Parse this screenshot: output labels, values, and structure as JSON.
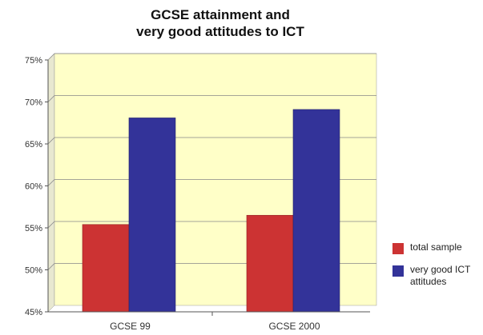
{
  "chart_data": {
    "type": "bar",
    "title": [
      "GCSE attainment and",
      "very good attitudes to ICT"
    ],
    "xlabel": "",
    "ylabel": "",
    "categories": [
      "GCSE 99",
      "GCSE 2000"
    ],
    "ylim": [
      45,
      75
    ],
    "yticks": [
      "45%",
      "50%",
      "55%",
      "60%",
      "65%",
      "70%",
      "75%"
    ],
    "grid": true,
    "legend_position": "right",
    "series": [
      {
        "name": "total sample",
        "color": "#cc3333",
        "values": [
          55.4,
          56.5
        ]
      },
      {
        "name": "very good ICT attitudes",
        "color": "#333399",
        "values": [
          68.1,
          69.1
        ]
      }
    ],
    "colors": {
      "plot_background": "#ffffc8",
      "gridline": "#888888"
    }
  }
}
